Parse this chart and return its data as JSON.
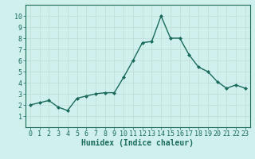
{
  "x": [
    0,
    1,
    2,
    3,
    4,
    5,
    6,
    7,
    8,
    9,
    10,
    11,
    12,
    13,
    14,
    15,
    16,
    17,
    18,
    19,
    20,
    21,
    22,
    23
  ],
  "y": [
    2.0,
    2.2,
    2.4,
    1.8,
    1.5,
    2.6,
    2.8,
    3.0,
    3.1,
    3.1,
    4.5,
    6.0,
    7.6,
    7.7,
    10.0,
    8.0,
    8.0,
    6.5,
    5.4,
    5.0,
    4.1,
    3.5,
    3.8,
    3.5
  ],
  "line_color": "#1a6b5a",
  "marker": "D",
  "marker_size": 2.0,
  "line_width": 1.0,
  "bg_color": "#cff0ec",
  "grid_color": "#c0dbd8",
  "spine_color": "#1a6b5a",
  "tick_color": "#1a6b5a",
  "label_color": "#1a6b5a",
  "xlabel": "Humidex (Indice chaleur)",
  "ylim": [
    0,
    11
  ],
  "xlim": [
    -0.5,
    23.5
  ],
  "yticks": [
    1,
    2,
    3,
    4,
    5,
    6,
    7,
    8,
    9,
    10
  ],
  "xticks": [
    0,
    1,
    2,
    3,
    4,
    5,
    6,
    7,
    8,
    9,
    10,
    11,
    12,
    13,
    14,
    15,
    16,
    17,
    18,
    19,
    20,
    21,
    22,
    23
  ],
  "tick_font_size": 6.0,
  "xlabel_font_size": 7.0
}
